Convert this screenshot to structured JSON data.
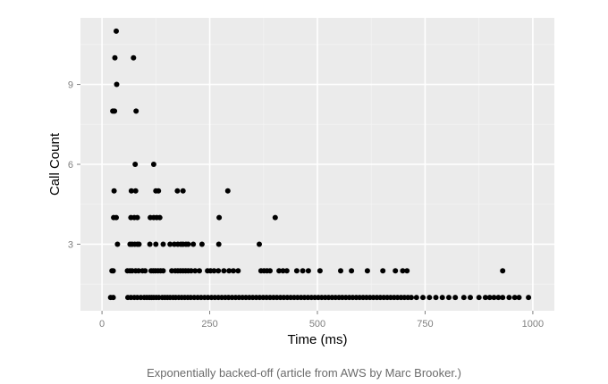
{
  "caption": "Exponentially backed-off (article from AWS by Marc Brooker.)",
  "chart_data": {
    "type": "scatter",
    "title": "",
    "xlabel": "Time (ms)",
    "ylabel": "Call Count",
    "xlim": [
      -50,
      1050
    ],
    "ylim": [
      0.5,
      11.5
    ],
    "xticks": [
      0,
      250,
      500,
      750,
      1000
    ],
    "yticks": [
      3,
      6,
      9
    ],
    "grid": true,
    "legend": "none",
    "colors": {
      "panel": "#ebebeb",
      "grid": "#ffffff",
      "point": "#000000"
    },
    "series": [
      {
        "points": [
          [
            33,
            11
          ],
          [
            30,
            10
          ],
          [
            73,
            10
          ],
          [
            34,
            9
          ],
          [
            25,
            8
          ],
          [
            29,
            8
          ],
          [
            79,
            8
          ],
          [
            77,
            6
          ],
          [
            120,
            6
          ],
          [
            28,
            5
          ],
          [
            68,
            5
          ],
          [
            78,
            5
          ],
          [
            125,
            5
          ],
          [
            131,
            5
          ],
          [
            175,
            5
          ],
          [
            188,
            5
          ],
          [
            292,
            5
          ],
          [
            27,
            4
          ],
          [
            33,
            4
          ],
          [
            67,
            4
          ],
          [
            75,
            4
          ],
          [
            82,
            4
          ],
          [
            112,
            4
          ],
          [
            120,
            4
          ],
          [
            127,
            4
          ],
          [
            134,
            4
          ],
          [
            272,
            4
          ],
          [
            402,
            4
          ],
          [
            36,
            3
          ],
          [
            65,
            3
          ],
          [
            70,
            3
          ],
          [
            76,
            3
          ],
          [
            82,
            3
          ],
          [
            86,
            3
          ],
          [
            111,
            3
          ],
          [
            125,
            3
          ],
          [
            142,
            3
          ],
          [
            158,
            3
          ],
          [
            168,
            3
          ],
          [
            176,
            3
          ],
          [
            183,
            3
          ],
          [
            188,
            3
          ],
          [
            195,
            3
          ],
          [
            200,
            3
          ],
          [
            212,
            3
          ],
          [
            232,
            3
          ],
          [
            271,
            3
          ],
          [
            365,
            3
          ],
          [
            23,
            2
          ],
          [
            26,
            2
          ],
          [
            59,
            2
          ],
          [
            65,
            2
          ],
          [
            70,
            2
          ],
          [
            78,
            2
          ],
          [
            85,
            2
          ],
          [
            94,
            2
          ],
          [
            100,
            2
          ],
          [
            114,
            2
          ],
          [
            119,
            2
          ],
          [
            124,
            2
          ],
          [
            130,
            2
          ],
          [
            136,
            2
          ],
          [
            142,
            2
          ],
          [
            162,
            2
          ],
          [
            170,
            2
          ],
          [
            176,
            2
          ],
          [
            182,
            2
          ],
          [
            188,
            2
          ],
          [
            194,
            2
          ],
          [
            200,
            2
          ],
          [
            207,
            2
          ],
          [
            216,
            2
          ],
          [
            226,
            2
          ],
          [
            245,
            2
          ],
          [
            252,
            2
          ],
          [
            260,
            2
          ],
          [
            270,
            2
          ],
          [
            283,
            2
          ],
          [
            295,
            2
          ],
          [
            305,
            2
          ],
          [
            316,
            2
          ],
          [
            369,
            2
          ],
          [
            376,
            2
          ],
          [
            383,
            2
          ],
          [
            390,
            2
          ],
          [
            411,
            2
          ],
          [
            420,
            2
          ],
          [
            429,
            2
          ],
          [
            452,
            2
          ],
          [
            466,
            2
          ],
          [
            479,
            2
          ],
          [
            506,
            2
          ],
          [
            554,
            2
          ],
          [
            579,
            2
          ],
          [
            616,
            2
          ],
          [
            652,
            2
          ],
          [
            681,
            2
          ],
          [
            698,
            2
          ],
          [
            708,
            2
          ],
          [
            930,
            2
          ],
          [
            20,
            1
          ],
          [
            26,
            1
          ],
          [
            60,
            1
          ],
          [
            67,
            1
          ],
          [
            75,
            1
          ],
          [
            82,
            1
          ],
          [
            90,
            1
          ],
          [
            98,
            1
          ],
          [
            104,
            1
          ],
          [
            110,
            1
          ],
          [
            115,
            1
          ],
          [
            120,
            1
          ],
          [
            126,
            1
          ],
          [
            132,
            1
          ],
          [
            140,
            1
          ],
          [
            146,
            1
          ],
          [
            152,
            1
          ],
          [
            158,
            1
          ],
          [
            165,
            1
          ],
          [
            171,
            1
          ],
          [
            178,
            1
          ],
          [
            185,
            1
          ],
          [
            192,
            1
          ],
          [
            199,
            1
          ],
          [
            206,
            1
          ],
          [
            214,
            1
          ],
          [
            222,
            1
          ],
          [
            230,
            1
          ],
          [
            238,
            1
          ],
          [
            246,
            1
          ],
          [
            254,
            1
          ],
          [
            262,
            1
          ],
          [
            270,
            1
          ],
          [
            278,
            1
          ],
          [
            286,
            1
          ],
          [
            294,
            1
          ],
          [
            302,
            1
          ],
          [
            310,
            1
          ],
          [
            318,
            1
          ],
          [
            326,
            1
          ],
          [
            334,
            1
          ],
          [
            342,
            1
          ],
          [
            350,
            1
          ],
          [
            358,
            1
          ],
          [
            366,
            1
          ],
          [
            374,
            1
          ],
          [
            382,
            1
          ],
          [
            390,
            1
          ],
          [
            398,
            1
          ],
          [
            406,
            1
          ],
          [
            414,
            1
          ],
          [
            422,
            1
          ],
          [
            430,
            1
          ],
          [
            438,
            1
          ],
          [
            446,
            1
          ],
          [
            454,
            1
          ],
          [
            462,
            1
          ],
          [
            470,
            1
          ],
          [
            478,
            1
          ],
          [
            486,
            1
          ],
          [
            494,
            1
          ],
          [
            502,
            1
          ],
          [
            510,
            1
          ],
          [
            518,
            1
          ],
          [
            526,
            1
          ],
          [
            534,
            1
          ],
          [
            542,
            1
          ],
          [
            550,
            1
          ],
          [
            558,
            1
          ],
          [
            566,
            1
          ],
          [
            574,
            1
          ],
          [
            582,
            1
          ],
          [
            590,
            1
          ],
          [
            598,
            1
          ],
          [
            606,
            1
          ],
          [
            614,
            1
          ],
          [
            622,
            1
          ],
          [
            630,
            1
          ],
          [
            638,
            1
          ],
          [
            646,
            1
          ],
          [
            654,
            1
          ],
          [
            662,
            1
          ],
          [
            670,
            1
          ],
          [
            678,
            1
          ],
          [
            686,
            1
          ],
          [
            694,
            1
          ],
          [
            702,
            1
          ],
          [
            710,
            1
          ],
          [
            718,
            1
          ],
          [
            730,
            1
          ],
          [
            745,
            1
          ],
          [
            760,
            1
          ],
          [
            775,
            1
          ],
          [
            790,
            1
          ],
          [
            805,
            1
          ],
          [
            820,
            1
          ],
          [
            840,
            1
          ],
          [
            855,
            1
          ],
          [
            875,
            1
          ],
          [
            890,
            1
          ],
          [
            900,
            1
          ],
          [
            910,
            1
          ],
          [
            920,
            1
          ],
          [
            930,
            1
          ],
          [
            945,
            1
          ],
          [
            958,
            1
          ],
          [
            968,
            1
          ],
          [
            990,
            1
          ]
        ]
      }
    ]
  }
}
